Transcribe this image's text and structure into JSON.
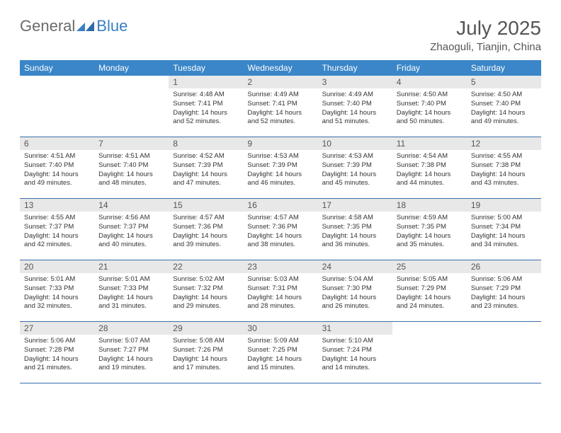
{
  "logo": {
    "text1": "General",
    "text2": "Blue"
  },
  "title": "July 2025",
  "location": "Zhaoguli, Tianjin, China",
  "colors": {
    "header_bg": "#3a86c8",
    "header_text": "#ffffff",
    "daynum_bg": "#e8e8e8",
    "border": "#3a6fa8",
    "logo_blue": "#3a7fc4",
    "text_gray": "#555555"
  },
  "weekdays": [
    "Sunday",
    "Monday",
    "Tuesday",
    "Wednesday",
    "Thursday",
    "Friday",
    "Saturday"
  ],
  "weeks": [
    [
      null,
      null,
      {
        "n": "1",
        "sr": "4:48 AM",
        "ss": "7:41 PM",
        "dl": "14 hours and 52 minutes."
      },
      {
        "n": "2",
        "sr": "4:49 AM",
        "ss": "7:41 PM",
        "dl": "14 hours and 52 minutes."
      },
      {
        "n": "3",
        "sr": "4:49 AM",
        "ss": "7:40 PM",
        "dl": "14 hours and 51 minutes."
      },
      {
        "n": "4",
        "sr": "4:50 AM",
        "ss": "7:40 PM",
        "dl": "14 hours and 50 minutes."
      },
      {
        "n": "5",
        "sr": "4:50 AM",
        "ss": "7:40 PM",
        "dl": "14 hours and 49 minutes."
      }
    ],
    [
      {
        "n": "6",
        "sr": "4:51 AM",
        "ss": "7:40 PM",
        "dl": "14 hours and 49 minutes."
      },
      {
        "n": "7",
        "sr": "4:51 AM",
        "ss": "7:40 PM",
        "dl": "14 hours and 48 minutes."
      },
      {
        "n": "8",
        "sr": "4:52 AM",
        "ss": "7:39 PM",
        "dl": "14 hours and 47 minutes."
      },
      {
        "n": "9",
        "sr": "4:53 AM",
        "ss": "7:39 PM",
        "dl": "14 hours and 46 minutes."
      },
      {
        "n": "10",
        "sr": "4:53 AM",
        "ss": "7:39 PM",
        "dl": "14 hours and 45 minutes."
      },
      {
        "n": "11",
        "sr": "4:54 AM",
        "ss": "7:38 PM",
        "dl": "14 hours and 44 minutes."
      },
      {
        "n": "12",
        "sr": "4:55 AM",
        "ss": "7:38 PM",
        "dl": "14 hours and 43 minutes."
      }
    ],
    [
      {
        "n": "13",
        "sr": "4:55 AM",
        "ss": "7:37 PM",
        "dl": "14 hours and 42 minutes."
      },
      {
        "n": "14",
        "sr": "4:56 AM",
        "ss": "7:37 PM",
        "dl": "14 hours and 40 minutes."
      },
      {
        "n": "15",
        "sr": "4:57 AM",
        "ss": "7:36 PM",
        "dl": "14 hours and 39 minutes."
      },
      {
        "n": "16",
        "sr": "4:57 AM",
        "ss": "7:36 PM",
        "dl": "14 hours and 38 minutes."
      },
      {
        "n": "17",
        "sr": "4:58 AM",
        "ss": "7:35 PM",
        "dl": "14 hours and 36 minutes."
      },
      {
        "n": "18",
        "sr": "4:59 AM",
        "ss": "7:35 PM",
        "dl": "14 hours and 35 minutes."
      },
      {
        "n": "19",
        "sr": "5:00 AM",
        "ss": "7:34 PM",
        "dl": "14 hours and 34 minutes."
      }
    ],
    [
      {
        "n": "20",
        "sr": "5:01 AM",
        "ss": "7:33 PM",
        "dl": "14 hours and 32 minutes."
      },
      {
        "n": "21",
        "sr": "5:01 AM",
        "ss": "7:33 PM",
        "dl": "14 hours and 31 minutes."
      },
      {
        "n": "22",
        "sr": "5:02 AM",
        "ss": "7:32 PM",
        "dl": "14 hours and 29 minutes."
      },
      {
        "n": "23",
        "sr": "5:03 AM",
        "ss": "7:31 PM",
        "dl": "14 hours and 28 minutes."
      },
      {
        "n": "24",
        "sr": "5:04 AM",
        "ss": "7:30 PM",
        "dl": "14 hours and 26 minutes."
      },
      {
        "n": "25",
        "sr": "5:05 AM",
        "ss": "7:29 PM",
        "dl": "14 hours and 24 minutes."
      },
      {
        "n": "26",
        "sr": "5:06 AM",
        "ss": "7:29 PM",
        "dl": "14 hours and 23 minutes."
      }
    ],
    [
      {
        "n": "27",
        "sr": "5:06 AM",
        "ss": "7:28 PM",
        "dl": "14 hours and 21 minutes."
      },
      {
        "n": "28",
        "sr": "5:07 AM",
        "ss": "7:27 PM",
        "dl": "14 hours and 19 minutes."
      },
      {
        "n": "29",
        "sr": "5:08 AM",
        "ss": "7:26 PM",
        "dl": "14 hours and 17 minutes."
      },
      {
        "n": "30",
        "sr": "5:09 AM",
        "ss": "7:25 PM",
        "dl": "14 hours and 15 minutes."
      },
      {
        "n": "31",
        "sr": "5:10 AM",
        "ss": "7:24 PM",
        "dl": "14 hours and 14 minutes."
      },
      null,
      null
    ]
  ],
  "labels": {
    "sunrise": "Sunrise:",
    "sunset": "Sunset:",
    "daylight": "Daylight:"
  }
}
